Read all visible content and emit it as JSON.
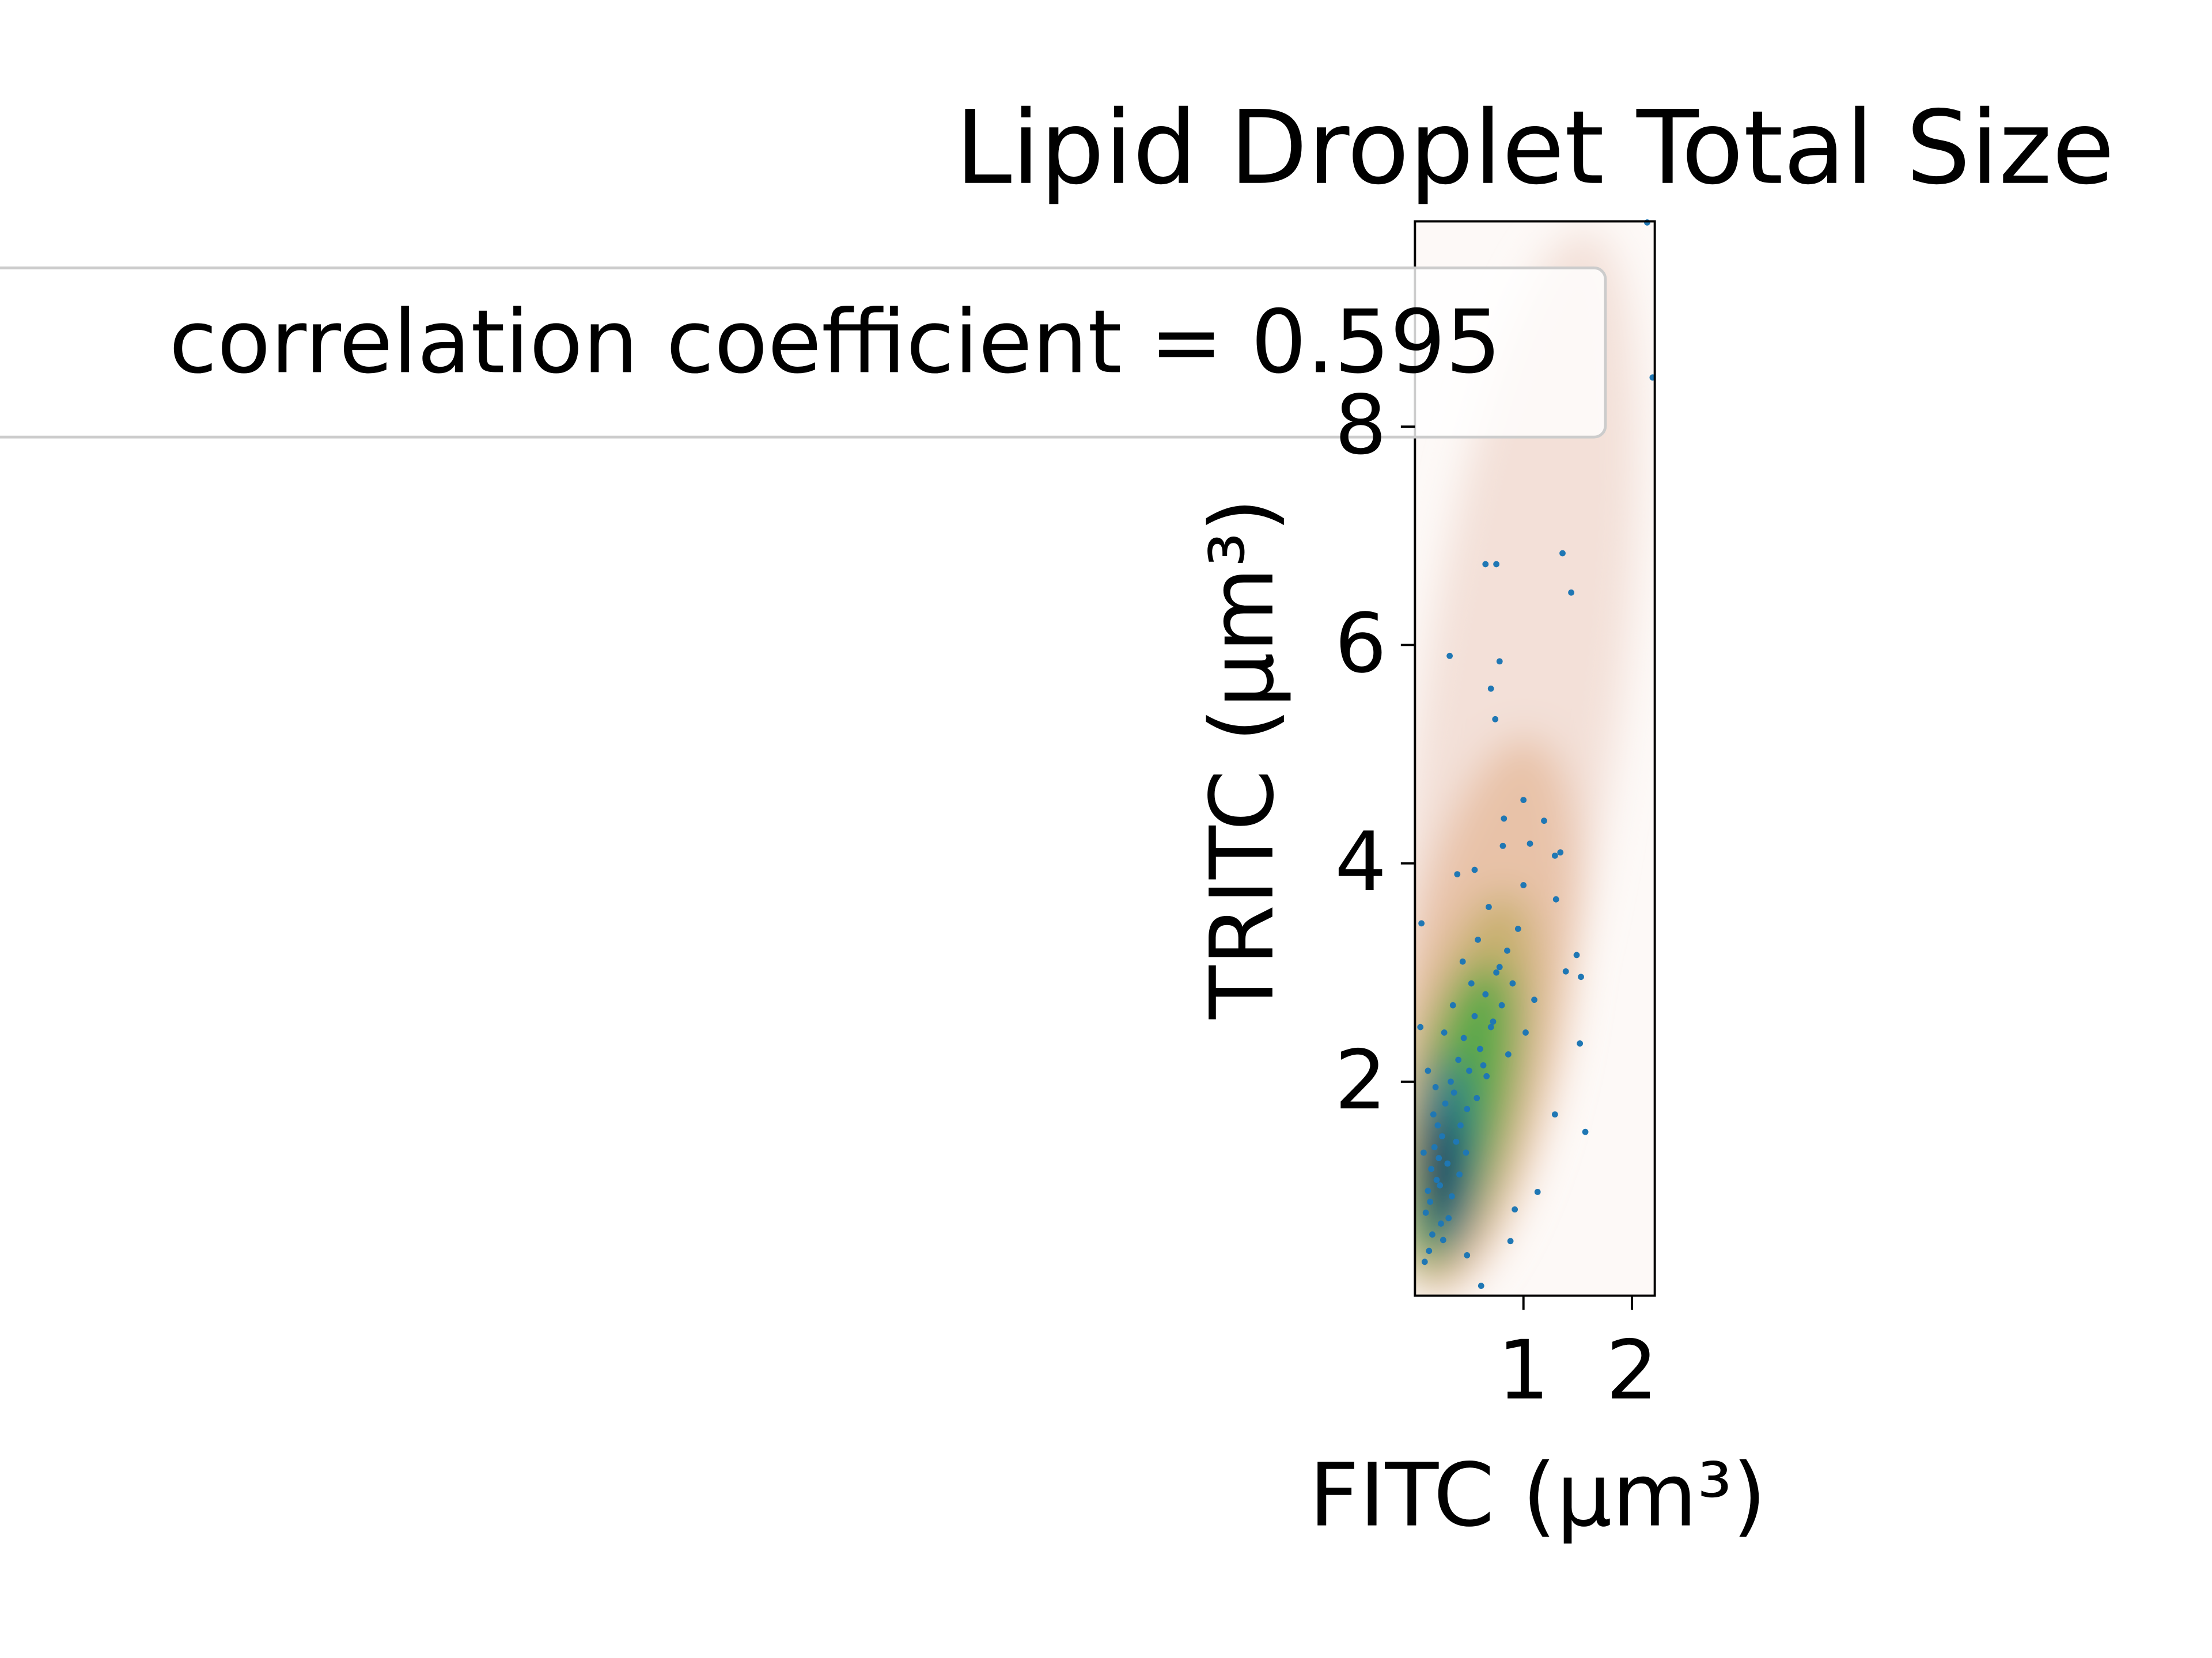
{
  "chart_data": {
    "type": "scatter",
    "title": "Lipid Droplet Total Size",
    "xlabel": "FITC (μm³)",
    "ylabel": "TRITC (μm³)",
    "legend": "correlation coefficient = 0.595",
    "legend_position": "upper left",
    "color": "#1f77b4",
    "xlim": [
      0.0,
      2.21
    ],
    "ylim": [
      0.04,
      9.88
    ],
    "xticks": [
      1,
      2
    ],
    "yticks": [
      2,
      4,
      6,
      8
    ],
    "x": [
      0.65,
      0.75,
      1.36,
      1.44,
      0.32,
      0.78,
      0.7,
      0.74,
      1.0,
      0.82,
      1.06,
      1.19,
      1.29,
      1.34,
      0.81,
      0.55,
      0.39,
      1.3,
      1.0,
      1.49,
      1.39,
      1.53,
      0.06,
      1.52,
      1.57,
      1.29,
      2.19,
      2.14,
      1.13,
      0.92,
      0.88,
      0.48,
      0.61,
      0.12,
      0.15,
      0.18,
      0.2,
      0.22,
      0.25,
      0.1,
      0.14,
      0.17,
      0.21,
      0.24,
      0.28,
      0.3,
      0.33,
      0.36,
      0.4,
      0.42,
      0.45,
      0.5,
      0.55,
      0.6,
      0.65,
      0.7,
      0.75,
      0.8,
      0.85,
      0.9,
      0.95,
      0.08,
      0.12,
      0.16,
      0.19,
      0.23,
      0.27,
      0.31,
      0.35,
      0.38,
      0.44,
      0.48,
      0.52,
      0.58,
      0.63,
      0.68,
      0.72,
      0.78,
      0.05,
      0.09,
      0.13,
      0.26,
      0.34,
      0.41,
      0.47,
      0.57,
      0.66,
      0.86,
      1.02,
      1.1
    ],
    "y": [
      6.74,
      6.74,
      6.84,
      6.48,
      5.9,
      5.85,
      5.6,
      5.32,
      4.58,
      4.41,
      4.18,
      4.39,
      4.07,
      4.1,
      4.16,
      3.94,
      3.9,
      3.67,
      3.8,
      3.16,
      3.01,
      2.96,
      3.45,
      2.35,
      1.54,
      1.7,
      8.45,
      9.87,
      0.99,
      0.83,
      0.54,
      0.41,
      0.13,
      1.0,
      1.2,
      1.4,
      1.1,
      1.3,
      1.5,
      0.8,
      0.9,
      1.7,
      1.6,
      0.7,
      1.8,
      1.25,
      2.0,
      1.9,
      2.2,
      1.6,
      2.4,
      2.1,
      2.6,
      2.3,
      2.8,
      2.5,
      3.0,
      2.7,
      3.2,
      2.9,
      3.4,
      1.35,
      2.1,
      0.6,
      1.95,
      1.05,
      2.45,
      0.75,
      2.7,
      1.45,
      3.1,
      1.75,
      2.9,
      3.3,
      2.15,
      3.6,
      2.55,
      3.05,
      2.5,
      0.35,
      0.45,
      0.55,
      0.95,
      1.15,
      1.35,
      1.85,
      2.05,
      2.25,
      2.45,
      2.75
    ]
  }
}
